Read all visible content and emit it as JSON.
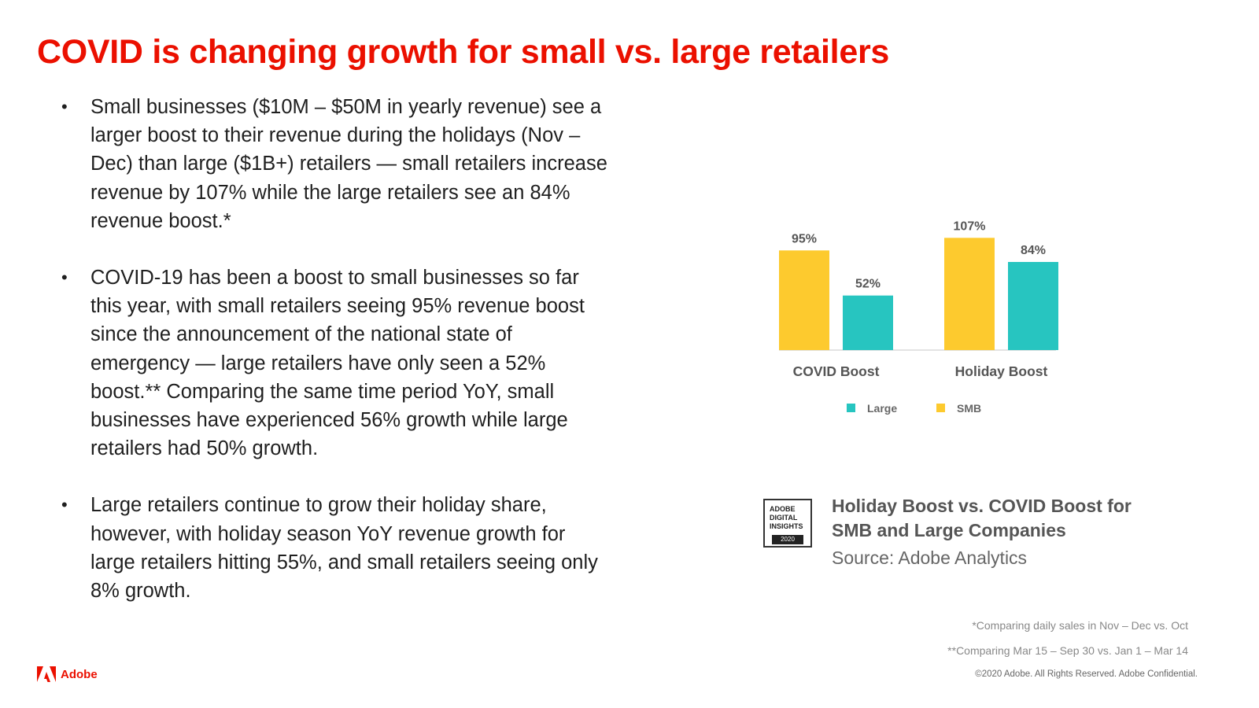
{
  "slide": {
    "title": "COVID is changing growth for small vs. large retailers"
  },
  "bullets": [
    "Small businesses ($10M – $50M in yearly revenue) see a larger boost to their revenue during the holidays (Nov – Dec) than large ($1B+) retailers — small retailers increase revenue by 107% while the large retailers see an 84% revenue boost.*",
    "COVID-19 has been a boost to small businesses so far this year, with small retailers seeing 95% revenue boost since the announcement of the national state of emergency — large retailers have only seen a 52% boost.** Comparing the same time period YoY, small businesses have experienced 56% growth while large retailers had 50% growth.",
    "Large retailers continue to grow their holiday share, however, with holiday season YoY revenue growth for large retailers hitting 55%, and small retailers seeing only 8% growth."
  ],
  "bullet_symbol": "•",
  "chart_data": {
    "type": "bar",
    "categories": [
      "COVID Boost",
      "Holiday Boost"
    ],
    "series": [
      {
        "name": "SMB",
        "values": [
          95,
          107
        ],
        "labels": [
          "95%",
          "107%"
        ],
        "color": "#fdca2e"
      },
      {
        "name": "Large",
        "values": [
          52,
          84
        ],
        "labels": [
          "52%",
          "84%"
        ],
        "color": "#27c5c0"
      }
    ],
    "legend_order": [
      "Large",
      "SMB"
    ],
    "ylim": [
      0,
      120
    ],
    "grid": false,
    "title": "",
    "xlabel": "",
    "ylabel": ""
  },
  "caption": {
    "badge_text": "ADOBE DIGITAL INSIGHTS",
    "badge_year": "2020",
    "title": "Holiday Boost vs. COVID Boost for SMB and Large Companies",
    "source": "Source: Adobe Analytics"
  },
  "footnotes": {
    "note1": "*Comparing daily sales in Nov – Dec vs. Oct",
    "note2": "**Comparing Mar 15 – Sep 30 vs. Jan 1 – Mar 14",
    "copyright": "©2020 Adobe. All Rights Reserved. Adobe Confidential."
  },
  "logo": {
    "text": "Adobe",
    "color": "#eb1000"
  }
}
